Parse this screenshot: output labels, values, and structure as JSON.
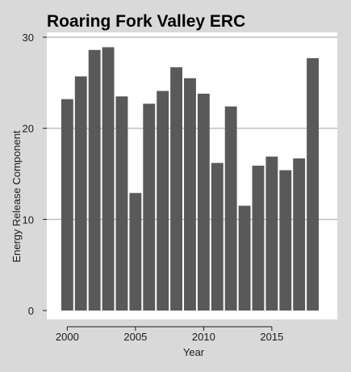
{
  "chart_data": {
    "type": "bar",
    "title": "Roaring Fork Valley ERC",
    "xlabel": "Year",
    "ylabel": "Energy Release Component",
    "x": [
      2000,
      2001,
      2002,
      2003,
      2004,
      2005,
      2006,
      2007,
      2008,
      2009,
      2010,
      2011,
      2012,
      2013,
      2014,
      2015,
      2016,
      2017,
      2018
    ],
    "values": [
      23.2,
      25.7,
      28.6,
      28.9,
      23.5,
      12.9,
      22.7,
      24.1,
      26.7,
      25.5,
      23.8,
      16.2,
      22.4,
      11.5,
      15.9,
      16.9,
      15.4,
      16.7,
      27.7
    ],
    "xlim": [
      1998.5,
      2019.8
    ],
    "ylim": [
      0,
      30
    ],
    "xticks": [
      2000,
      2005,
      2010,
      2015
    ],
    "yticks": [
      0,
      10,
      20,
      30
    ],
    "grid": "horizontal",
    "colors": {
      "bar": "#595959",
      "background": "#d9d9d9",
      "panel": "#ffffff",
      "grid": "#bfbfbf"
    }
  }
}
